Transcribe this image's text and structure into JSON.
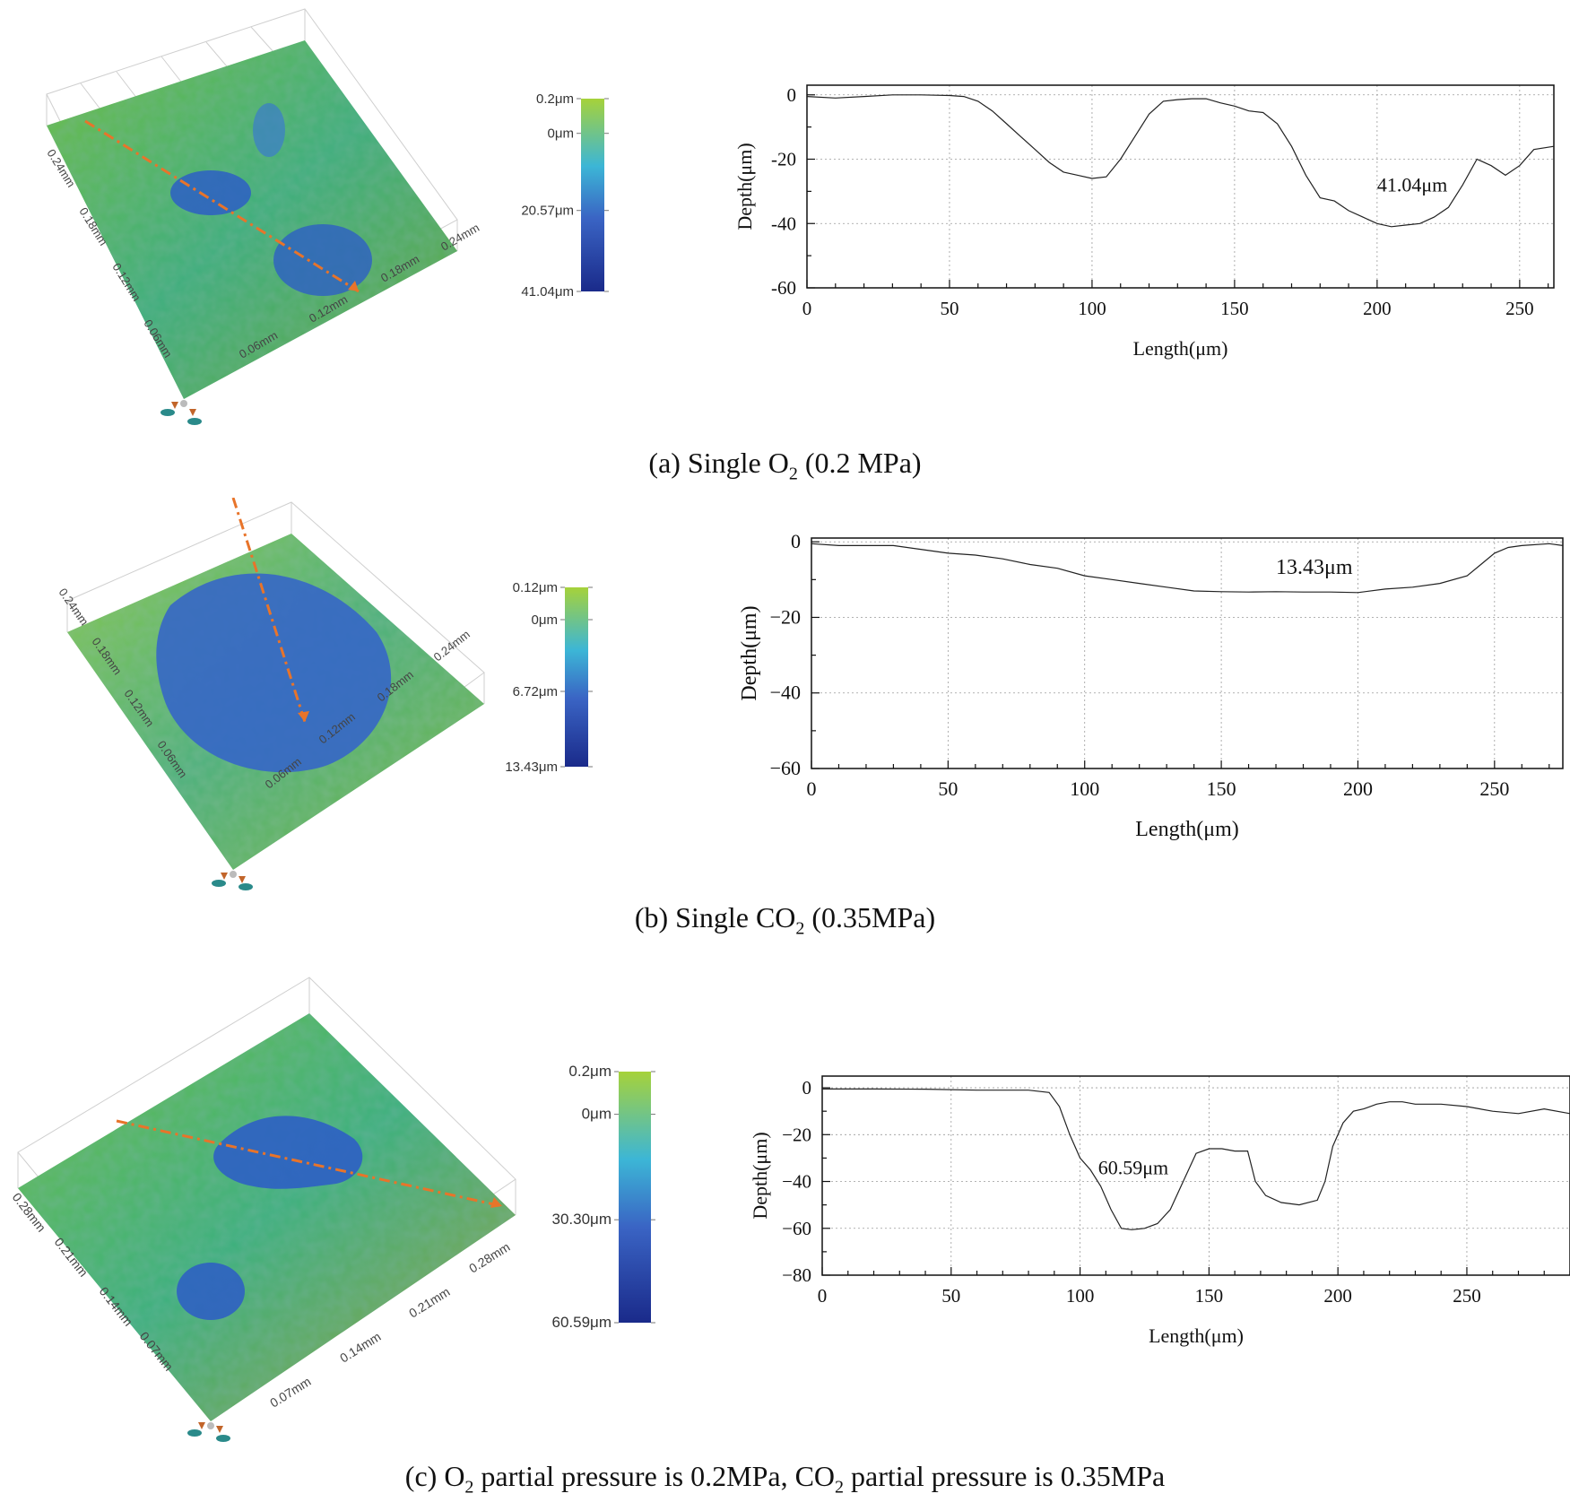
{
  "chart_data": [
    {
      "id": "a",
      "type": "line",
      "caption": {
        "prefix": "(a) Single O",
        "sub": "2",
        "suffix": " (0.2 MPa)"
      },
      "xlabel": "Length(μm)",
      "ylabel": "Depth(μm)",
      "xlim": [
        0,
        262
      ],
      "ylim": [
        -60,
        3
      ],
      "xticks": [
        0,
        50,
        100,
        150,
        200,
        250
      ],
      "xtick_labels": [
        "0",
        "50",
        "100",
        "150",
        "200",
        "250"
      ],
      "yticks": [
        0,
        -20,
        -40,
        -60
      ],
      "ytick_labels": [
        "0",
        "-20",
        "-40",
        "-60"
      ],
      "annotation": {
        "text": "41.04μm",
        "x": 200,
        "y": -30
      },
      "series": [
        {
          "name": "profile",
          "x": [
            0,
            10,
            20,
            30,
            40,
            50,
            55,
            60,
            65,
            70,
            75,
            80,
            85,
            90,
            95,
            100,
            105,
            110,
            115,
            120,
            125,
            130,
            135,
            140,
            145,
            150,
            155,
            160,
            165,
            170,
            175,
            180,
            185,
            190,
            195,
            200,
            205,
            210,
            215,
            220,
            225,
            230,
            235,
            240,
            245,
            250,
            255,
            262
          ],
          "y": [
            -0.5,
            -1,
            -0.5,
            0,
            0,
            -0.2,
            -0.5,
            -2,
            -5,
            -9,
            -13,
            -17,
            -21,
            -24,
            -25,
            -26,
            -25.5,
            -20,
            -13,
            -6,
            -2,
            -1.5,
            -1.2,
            -1.2,
            -2.5,
            -3.5,
            -5,
            -5.5,
            -9,
            -16,
            -25,
            -32,
            -33,
            -36,
            -38,
            -40,
            -41,
            -40.5,
            -40,
            -38,
            -35,
            -28,
            -20,
            -22,
            -25,
            -22,
            -17,
            -16
          ]
        }
      ],
      "colorbar": {
        "labels": [
          "0.2μm",
          "0μm",
          "20.57μm",
          "41.04μm"
        ],
        "label_fracs": [
          0,
          0.18,
          0.58,
          1
        ]
      },
      "surface": {
        "left_ticks": [
          "0.24mm",
          "0.18mm",
          "0.12mm",
          "0.06mm"
        ],
        "bottom_ticks": [
          "0.06mm",
          "0.12mm",
          "0.18mm",
          "0.24mm"
        ]
      }
    },
    {
      "id": "b",
      "type": "line",
      "caption": {
        "prefix": "(b) Single CO",
        "sub": "2",
        "suffix": " (0.35MPa)"
      },
      "xlabel": "Length(μm)",
      "ylabel": "Depth(μm)",
      "xlim": [
        0,
        275
      ],
      "ylim": [
        -60,
        1
      ],
      "xticks": [
        0,
        50,
        100,
        150,
        200,
        250
      ],
      "xtick_labels": [
        "0",
        "50",
        "100",
        "150",
        "200",
        "250"
      ],
      "yticks": [
        0,
        -20,
        -40,
        -60
      ],
      "ytick_labels": [
        "0",
        "−20",
        "−40",
        "−60"
      ],
      "annotation": {
        "text": "13.43μm",
        "x": 170,
        "y": -8.5
      },
      "series": [
        {
          "name": "profile",
          "x": [
            0,
            10,
            20,
            30,
            40,
            50,
            60,
            70,
            80,
            90,
            100,
            110,
            120,
            130,
            140,
            150,
            160,
            170,
            180,
            190,
            200,
            210,
            220,
            230,
            240,
            245,
            250,
            255,
            260,
            270,
            275
          ],
          "y": [
            -0.5,
            -1,
            -1,
            -1,
            -2,
            -3,
            -3.5,
            -4.5,
            -6,
            -7,
            -9,
            -10,
            -11,
            -12,
            -13,
            -13.2,
            -13.3,
            -13.2,
            -13.3,
            -13.3,
            -13.43,
            -12.5,
            -12,
            -11,
            -9,
            -6,
            -3,
            -1.5,
            -1,
            -0.5,
            -1
          ]
        }
      ],
      "colorbar": {
        "labels": [
          "0.12μm",
          "0μm",
          "6.72μm",
          "13.43μm"
        ],
        "label_fracs": [
          0,
          0.18,
          0.58,
          1
        ]
      },
      "surface": {
        "left_ticks": [
          "0.24mm",
          "0.18mm",
          "0.12mm",
          "0.06mm"
        ],
        "bottom_ticks": [
          "0.06mm",
          "0.12mm",
          "0.18mm",
          "0.24mm"
        ]
      }
    },
    {
      "id": "c",
      "type": "line",
      "caption": {
        "prefix": "(c) O",
        "sub": "2",
        "suffix": " partial pressure is 0.2MPa, CO",
        "sub2": "2",
        "suffix2": " partial pressure is 0.35MPa"
      },
      "xlabel": "Length(μm)",
      "ylabel": "Depth(μm)",
      "xlim": [
        0,
        290
      ],
      "ylim": [
        -80,
        5
      ],
      "xticks": [
        0,
        50,
        100,
        150,
        200,
        250
      ],
      "xtick_labels": [
        "0",
        "50",
        "100",
        "150",
        "200",
        "250"
      ],
      "yticks": [
        0,
        -20,
        -40,
        -60,
        -80
      ],
      "ytick_labels": [
        "0",
        "−20",
        "−40",
        "−60",
        "−80"
      ],
      "annotation": {
        "text": "60.59μm",
        "x": 107,
        "y": -37
      },
      "series": [
        {
          "name": "profile",
          "x": [
            0,
            20,
            40,
            60,
            80,
            88,
            92,
            96,
            100,
            104,
            108,
            112,
            116,
            120,
            125,
            130,
            135,
            140,
            145,
            150,
            155,
            160,
            165,
            168,
            172,
            178,
            185,
            192,
            195,
            198,
            202,
            206,
            210,
            215,
            220,
            225,
            230,
            240,
            250,
            260,
            270,
            280,
            290
          ],
          "y": [
            -0.5,
            -0.5,
            -0.6,
            -1,
            -1,
            -2,
            -8,
            -20,
            -30,
            -35,
            -42,
            -52,
            -60,
            -60.59,
            -60,
            -58,
            -52,
            -40,
            -28,
            -26,
            -26,
            -27,
            -27,
            -40,
            -46,
            -49,
            -50,
            -48,
            -40,
            -25,
            -15,
            -10,
            -9,
            -7,
            -6,
            -6,
            -7,
            -7,
            -8,
            -10,
            -11,
            -9,
            -11
          ]
        }
      ],
      "colorbar": {
        "labels": [
          "0.2μm",
          "0μm",
          "30.30μm",
          "60.59μm"
        ],
        "label_fracs": [
          0,
          0.17,
          0.59,
          1
        ]
      },
      "surface": {
        "left_ticks": [
          "0.28mm",
          "0.21mm",
          "0.14mm",
          "0.07mm"
        ],
        "bottom_ticks": [
          "0.07mm",
          "0.14mm",
          "0.21mm",
          "0.28mm"
        ]
      }
    }
  ],
  "colors": {
    "line": "#222222",
    "grid": "#9a9a9a",
    "marker_line": "#e8742a",
    "cbar_top": "#a6d23a",
    "cbar_mid": "#3cb6d6",
    "cbar_low": "#3a64c4",
    "cbar_bottom": "#1a2a8a"
  }
}
